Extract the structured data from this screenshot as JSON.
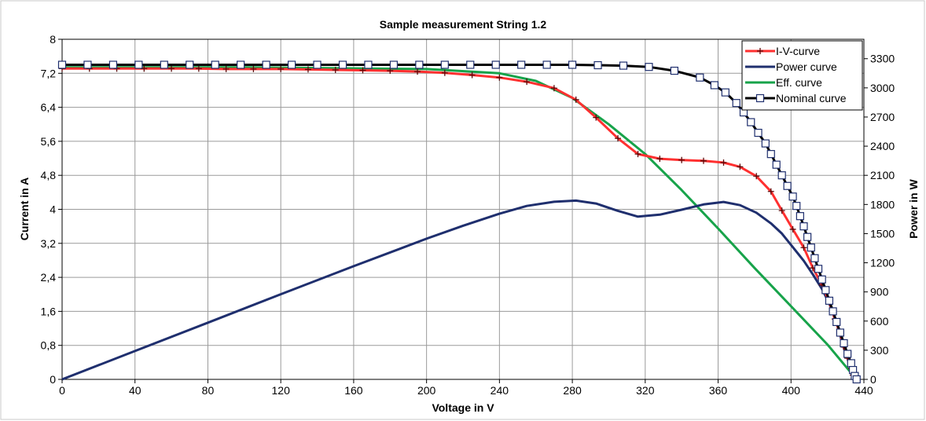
{
  "chart_data": {
    "type": "line",
    "title": "Sample measurement String 1.2",
    "xlabel": "Voltage in V",
    "ylabel": "Current in A",
    "y2label": "Power in W",
    "xlim": [
      0,
      440
    ],
    "ylim": [
      0,
      8
    ],
    "y2lim": [
      0,
      3500
    ],
    "x_ticks": [
      0,
      40,
      80,
      120,
      160,
      200,
      240,
      280,
      320,
      360,
      400,
      440
    ],
    "y_ticks": [
      "0",
      "0,8",
      "1,6",
      "2,4",
      "3,2",
      "4",
      "4,8",
      "5,6",
      "6,4",
      "7,2",
      "8"
    ],
    "y_tick_values": [
      0,
      0.8,
      1.6,
      2.4,
      3.2,
      4,
      4.8,
      5.6,
      6.4,
      7.2,
      8
    ],
    "y2_ticks": [
      0,
      300,
      600,
      900,
      1200,
      1500,
      1800,
      2100,
      2400,
      2700,
      3000,
      3300
    ],
    "grid": true,
    "legend_position": "top-right",
    "series": [
      {
        "name": "I-V-curve",
        "axis": "left",
        "color": "#ff3030",
        "marker": "plus",
        "x": [
          0,
          15,
          30,
          45,
          60,
          75,
          90,
          105,
          120,
          135,
          150,
          165,
          180,
          195,
          210,
          225,
          240,
          255,
          270,
          282,
          293,
          305,
          316,
          328,
          340,
          352,
          363,
          372,
          381,
          389,
          395,
          401,
          407,
          412,
          417,
          421,
          424,
          427,
          429,
          431,
          433,
          434,
          435
        ],
        "y": [
          7.31,
          7.31,
          7.31,
          7.31,
          7.31,
          7.31,
          7.3,
          7.3,
          7.3,
          7.29,
          7.28,
          7.27,
          7.26,
          7.24,
          7.21,
          7.16,
          7.1,
          7.0,
          6.85,
          6.58,
          6.16,
          5.67,
          5.3,
          5.19,
          5.16,
          5.14,
          5.1,
          5.0,
          4.78,
          4.42,
          3.97,
          3.53,
          3.1,
          2.62,
          2.22,
          1.82,
          1.42,
          1.08,
          0.76,
          0.5,
          0.26,
          0.1,
          0.0
        ]
      },
      {
        "name": "Power curve",
        "axis": "right",
        "color": "#1f2f6e",
        "marker": "none",
        "x": [
          0,
          40,
          80,
          120,
          160,
          200,
          220,
          240,
          255,
          270,
          282,
          293,
          305,
          316,
          328,
          340,
          352,
          363,
          372,
          381,
          389,
          395,
          401,
          407,
          412,
          417,
          421,
          425,
          429,
          432,
          435
        ],
        "y": [
          0,
          292,
          584,
          876,
          1165,
          1448,
          1581,
          1705,
          1785,
          1828,
          1840,
          1810,
          1735,
          1675,
          1695,
          1746,
          1800,
          1826,
          1793,
          1715,
          1605,
          1500,
          1360,
          1220,
          1080,
          930,
          780,
          580,
          320,
          160,
          0
        ]
      },
      {
        "name": "Eff. curve",
        "axis": "left",
        "color": "#17a34a",
        "marker": "none",
        "x": [
          0,
          100,
          200,
          240,
          260,
          280,
          300,
          320,
          340,
          360,
          380,
          400,
          420,
          434
        ],
        "y": [
          7.34,
          7.34,
          7.3,
          7.2,
          7.02,
          6.62,
          6.0,
          5.3,
          4.45,
          3.55,
          2.62,
          1.72,
          0.82,
          0.1
        ]
      },
      {
        "name": "Nominal curve",
        "axis": "left",
        "color": "#000000",
        "marker": "open-square",
        "x": [
          0,
          14,
          28,
          42,
          56,
          70,
          84,
          98,
          112,
          126,
          140,
          154,
          168,
          182,
          196,
          210,
          224,
          238,
          252,
          266,
          280,
          294,
          308,
          322,
          336,
          350,
          358,
          364,
          370,
          374,
          378,
          382,
          386,
          389,
          392,
          395,
          398,
          401,
          403,
          405,
          407,
          409,
          411,
          413,
          415,
          417,
          419,
          421,
          423,
          425,
          427,
          429,
          431,
          433,
          434,
          435,
          436
        ],
        "y": [
          7.4,
          7.4,
          7.4,
          7.4,
          7.4,
          7.4,
          7.4,
          7.4,
          7.4,
          7.4,
          7.4,
          7.4,
          7.4,
          7.4,
          7.4,
          7.4,
          7.4,
          7.4,
          7.4,
          7.4,
          7.4,
          7.39,
          7.38,
          7.35,
          7.26,
          7.1,
          6.92,
          6.75,
          6.5,
          6.28,
          6.05,
          5.8,
          5.55,
          5.3,
          5.05,
          4.8,
          4.55,
          4.3,
          4.08,
          3.84,
          3.6,
          3.35,
          3.1,
          2.85,
          2.6,
          2.35,
          2.1,
          1.85,
          1.6,
          1.35,
          1.1,
          0.85,
          0.6,
          0.38,
          0.22,
          0.08,
          0.0
        ]
      }
    ]
  }
}
